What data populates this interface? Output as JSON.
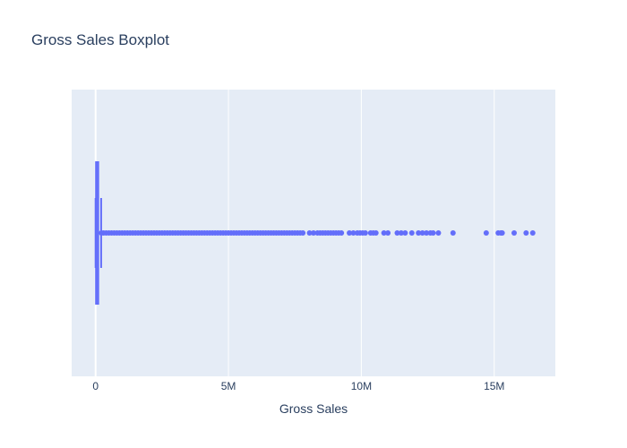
{
  "chart_data": {
    "type": "box",
    "title": "Gross Sales Boxplot",
    "xlabel": "Gross Sales",
    "ylabel": "",
    "orientation": "horizontal",
    "xlim": [
      -900000,
      17300000
    ],
    "xticks": [
      0,
      5000000,
      10000000,
      15000000
    ],
    "xtick_labels": [
      "0",
      "5M",
      "10M",
      "15M"
    ],
    "grid": true,
    "legend": "none",
    "colors": {
      "plot_bg": "#e5ecf6",
      "series": "#636efa",
      "grid": "#ffffff",
      "text": "#2a3f5f"
    },
    "box": {
      "min": 0,
      "q1": 17000,
      "median": 37000,
      "q3": 100000,
      "upper_fence": 210000
    },
    "outliers": [
      220000,
      300000,
      400000,
      500000,
      600000,
      700000,
      800000,
      900000,
      1000000,
      1100000,
      1200000,
      1300000,
      1400000,
      1500000,
      1600000,
      1700000,
      1800000,
      1900000,
      2000000,
      2100000,
      2200000,
      2300000,
      2400000,
      2500000,
      2600000,
      2700000,
      2800000,
      2900000,
      3000000,
      3100000,
      3200000,
      3300000,
      3400000,
      3500000,
      3600000,
      3700000,
      3800000,
      3900000,
      4000000,
      4100000,
      4200000,
      4300000,
      4400000,
      4500000,
      4600000,
      4700000,
      4800000,
      4900000,
      5000000,
      5100000,
      5200000,
      5300000,
      5400000,
      5500000,
      5600000,
      5700000,
      5800000,
      5900000,
      6000000,
      6100000,
      6200000,
      6300000,
      6400000,
      6500000,
      6600000,
      6700000,
      6800000,
      6900000,
      7000000,
      7100000,
      7200000,
      7300000,
      7400000,
      7500000,
      7600000,
      7700000,
      7800000,
      8050000,
      8200000,
      8350000,
      8450000,
      8550000,
      8650000,
      8750000,
      8850000,
      8950000,
      9050000,
      9150000,
      9250000,
      9550000,
      9700000,
      9850000,
      9950000,
      10050000,
      10150000,
      10350000,
      10450000,
      10550000,
      10850000,
      11000000,
      11350000,
      11500000,
      11650000,
      11900000,
      12150000,
      12300000,
      12450000,
      12600000,
      12700000,
      12900000,
      13450000,
      14700000,
      15150000,
      15250000,
      15300000,
      15750000,
      16200000,
      16450000
    ]
  }
}
